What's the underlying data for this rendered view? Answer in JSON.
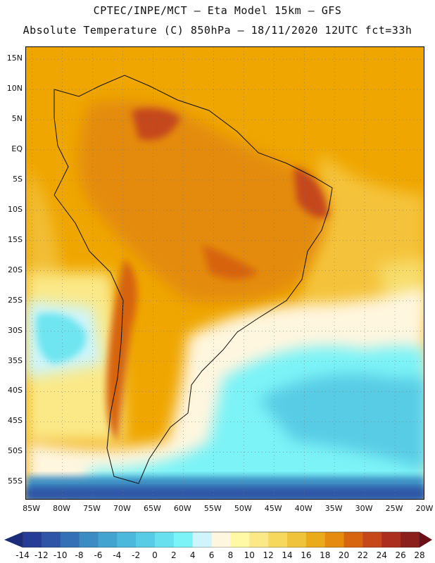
{
  "header": {
    "line1": "CPTEC/INPE/MCT –  Eta Model 15km – GFS",
    "line2": "Absolute Temperature (C) 850hPa – 18/11/2020 12UTC fct=33h"
  },
  "map": {
    "lat_labels": [
      "15N",
      "10N",
      "5N",
      "EQ",
      "5S",
      "10S",
      "15S",
      "20S",
      "25S",
      "30S",
      "35S",
      "40S",
      "45S",
      "50S",
      "55S"
    ],
    "lon_labels": [
      "85W",
      "80W",
      "75W",
      "70W",
      "65W",
      "60W",
      "55W",
      "50W",
      "45W",
      "40W",
      "35W",
      "30W",
      "25W",
      "20W"
    ],
    "lat_range": [
      17,
      -58
    ],
    "lon_range": [
      -86,
      -20
    ],
    "field_description_colors": {
      "ocean_north": "#f0a400",
      "land_hot": "#d96a0d",
      "hottest": "#a8321a",
      "cold_ocean": "#5ad7e6"
    }
  },
  "colorbar": {
    "labels": [
      "-14",
      "-12",
      "-10",
      "-8",
      "-6",
      "-4",
      "-2",
      "0",
      "2",
      "4",
      "6",
      "8",
      "10",
      "12",
      "14",
      "16",
      "18",
      "20",
      "22",
      "24",
      "26",
      "28"
    ],
    "colors": [
      "#263d97",
      "#2e55a6",
      "#3470b6",
      "#3a8cc3",
      "#42a3d0",
      "#4cb8dc",
      "#59cce5",
      "#69e0ee",
      "#7bf3f7",
      "#cdf5fb",
      "#fff6df",
      "#fff9a6",
      "#fbe988",
      "#f5d85c",
      "#efc33b",
      "#e9aa1b",
      "#e48b10",
      "#d7640f",
      "#c5471a",
      "#ac2e1e",
      "#8a1f1b"
    ],
    "under_color": "#1d2c78",
    "over_color": "#6a0f18"
  }
}
